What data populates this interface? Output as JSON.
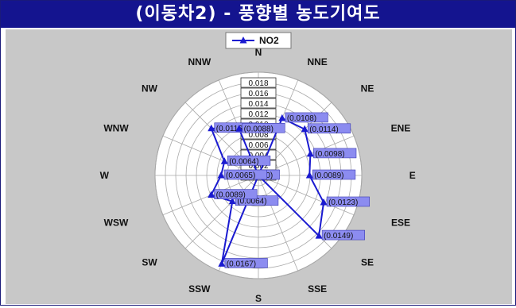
{
  "title": "(이동차2) - 풍향별 농도기여도",
  "chart_data": {
    "type": "radar",
    "legend": {
      "label": "NO2",
      "placement": "top-center"
    },
    "series": [
      {
        "name": "NO2",
        "color": "#1a1ad0",
        "directions": [
          "N",
          "NNE",
          "NE",
          "ENE",
          "E",
          "ESE",
          "SE",
          "SSE",
          "S",
          "SSW",
          "SW",
          "WSW",
          "W",
          "WNW",
          "NW",
          "NNW"
        ],
        "values": [
          0.0,
          0.0108,
          0.0114,
          0.0098,
          0.0089,
          0.0123,
          0.0149,
          0.0,
          0.0,
          0.0167,
          0.0064,
          0.0089,
          0.0065,
          0.0064,
          0.0116,
          0.0088
        ],
        "labels": [
          "(0)",
          "(0.0108)",
          "(0.0114)",
          "(0.0098)",
          "(0.0089)",
          "(0.0123)",
          "(0.0149)",
          "",
          "",
          "(0.0167)",
          "(0.0064)",
          "(0.0089)",
          "(0.0065)",
          "(0.0064)",
          "(0.0116)",
          "(0.0088)"
        ]
      }
    ],
    "radial_ticks": [
      "0.000",
      "0.002",
      "0.004",
      "0.006",
      "0.008",
      "0.010",
      "0.012",
      "0.014",
      "0.016",
      "0.018"
    ],
    "rmax": 0.018,
    "rings": 10
  }
}
